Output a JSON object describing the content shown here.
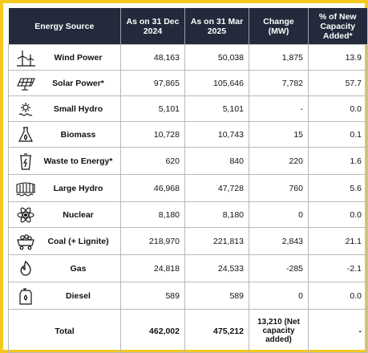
{
  "header": {
    "source": "Energy Source",
    "dec": "As on 31 Dec 2024",
    "mar": "As on 31 Mar 2025",
    "change": "Change (MW)",
    "pct": "% of New Capacity Added*"
  },
  "rows": [
    {
      "name": "Wind Power",
      "icon": "wind-turbine-icon",
      "dec": "48,163",
      "mar": "50,038",
      "change": "1,875",
      "pct": "13.9"
    },
    {
      "name": "Solar Power*",
      "icon": "solar-panel-icon",
      "dec": "97,865",
      "mar": "105,646",
      "change": "7,782",
      "pct": "57.7"
    },
    {
      "name": "Small Hydro",
      "icon": "small-hydro-icon",
      "dec": "5,101",
      "mar": "5,101",
      "change": "-",
      "pct": "0.0"
    },
    {
      "name": "Biomass",
      "icon": "biomass-icon",
      "dec": "10,728",
      "mar": "10,743",
      "change": "15",
      "pct": "0.1"
    },
    {
      "name": "Waste to Energy*",
      "icon": "waste-bin-icon",
      "dec": "620",
      "mar": "840",
      "change": "220",
      "pct": "1.6"
    },
    {
      "name": "Large Hydro",
      "icon": "dam-icon",
      "dec": "46,968",
      "mar": "47,728",
      "change": "760",
      "pct": "5.6"
    },
    {
      "name": "Nuclear",
      "icon": "atom-icon",
      "dec": "8,180",
      "mar": "8,180",
      "change": "0",
      "pct": "0.0"
    },
    {
      "name": "Coal (+ Lignite)",
      "icon": "coal-cart-icon",
      "dec": "218,970",
      "mar": "221,813",
      "change": "2,843",
      "pct": "21.1"
    },
    {
      "name": "Gas",
      "icon": "flame-icon",
      "dec": "24,818",
      "mar": "24,533",
      "change": "-285",
      "pct": "-2.1"
    },
    {
      "name": "Diesel",
      "icon": "fuel-can-icon",
      "dec": "589",
      "mar": "589",
      "change": "0",
      "pct": "0.0"
    }
  ],
  "total": {
    "label": "Total",
    "dec": "462,002",
    "mar": "475,212",
    "change": "13,210 (Net capacity added)",
    "pct": "-"
  },
  "colors": {
    "header_bg": "#232a3b",
    "frame": "#f5c81e"
  }
}
